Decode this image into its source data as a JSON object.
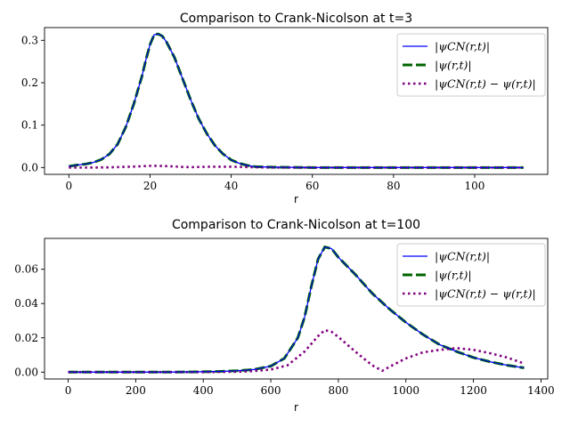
{
  "chart_data": [
    {
      "type": "line",
      "title": "Comparison to Crank-Nicolson at t=3",
      "xlabel": "r",
      "ylabel": "",
      "xlim": [
        -6,
        118
      ],
      "ylim": [
        -0.016,
        0.33
      ],
      "xticks": [
        0,
        20,
        40,
        60,
        80,
        100
      ],
      "xtick_labels": [
        "0",
        "20",
        "40",
        "60",
        "80",
        "100"
      ],
      "yticks": [
        0.0,
        0.1,
        0.2,
        0.3
      ],
      "ytick_labels": [
        "0.0",
        "0.1",
        "0.2",
        "0.3"
      ],
      "legend": "top-right",
      "series": [
        {
          "name": "|ψCN(r,t)|",
          "color": "#0000ff",
          "style": "solid",
          "x": [
            0,
            2,
            4,
            6,
            8,
            10,
            12,
            14,
            16,
            18,
            19,
            20,
            21,
            22,
            23,
            24,
            26,
            28,
            30,
            32,
            34,
            36,
            38,
            40,
            42,
            44,
            46,
            50,
            60,
            70,
            80,
            90,
            100,
            112
          ],
          "y": [
            0.003,
            0.006,
            0.008,
            0.012,
            0.019,
            0.032,
            0.055,
            0.095,
            0.15,
            0.215,
            0.255,
            0.29,
            0.313,
            0.315,
            0.31,
            0.297,
            0.26,
            0.21,
            0.16,
            0.115,
            0.08,
            0.052,
            0.032,
            0.018,
            0.01,
            0.005,
            0.002,
            0.001,
            0.0,
            0.0,
            0.0,
            0.0,
            0.0,
            0.0
          ]
        },
        {
          "name": "|ψ(r,t)|",
          "color": "#006400",
          "style": "dashed",
          "x": [
            0,
            2,
            4,
            6,
            8,
            10,
            12,
            14,
            16,
            18,
            19,
            20,
            21,
            22,
            23,
            24,
            26,
            28,
            30,
            32,
            34,
            36,
            38,
            40,
            42,
            44,
            46,
            50,
            60,
            70,
            80,
            90,
            100,
            112
          ],
          "y": [
            0.003,
            0.006,
            0.008,
            0.012,
            0.019,
            0.032,
            0.055,
            0.095,
            0.15,
            0.215,
            0.255,
            0.29,
            0.313,
            0.315,
            0.31,
            0.297,
            0.26,
            0.21,
            0.16,
            0.115,
            0.08,
            0.052,
            0.032,
            0.018,
            0.01,
            0.005,
            0.002,
            0.001,
            0.0,
            0.0,
            0.0,
            0.0,
            0.0,
            0.0
          ]
        },
        {
          "name": "|ψCN(r,t) − ψ(r,t)|",
          "color": "#800080",
          "style": "dotted",
          "x": [
            0,
            5,
            10,
            15,
            20,
            22,
            25,
            28,
            30,
            35,
            40,
            45,
            50,
            60,
            80,
            100,
            112
          ],
          "y": [
            0.0,
            0.0,
            0.0005,
            0.002,
            0.004,
            0.004,
            0.003,
            0.0015,
            0.001,
            0.002,
            0.002,
            0.001,
            0.0,
            0.0,
            0.0,
            0.0,
            0.0
          ]
        }
      ]
    },
    {
      "type": "line",
      "title": "Comparison to Crank-Nicolson at t=100",
      "xlabel": "r",
      "ylabel": "",
      "xlim": [
        -70,
        1420
      ],
      "ylim": [
        -0.004,
        0.078
      ],
      "xticks": [
        0,
        200,
        400,
        600,
        800,
        1000,
        1200,
        1400
      ],
      "xtick_labels": [
        "0",
        "200",
        "400",
        "600",
        "800",
        "1000",
        "1200",
        "1400"
      ],
      "yticks": [
        0.0,
        0.02,
        0.04,
        0.06
      ],
      "ytick_labels": [
        "0.00",
        "0.02",
        "0.04",
        "0.06"
      ],
      "legend": "top-right",
      "series": [
        {
          "name": "|ψCN(r,t)|",
          "color": "#0000ff",
          "style": "solid",
          "x": [
            0,
            100,
            200,
            300,
            400,
            450,
            500,
            550,
            600,
            640,
            680,
            700,
            720,
            740,
            760,
            780,
            800,
            850,
            900,
            950,
            1000,
            1050,
            1100,
            1150,
            1200,
            1250,
            1300,
            1350
          ],
          "y": [
            0.0,
            0.0,
            0.0,
            0.0,
            0.0002,
            0.0004,
            0.0008,
            0.0015,
            0.0035,
            0.008,
            0.02,
            0.032,
            0.05,
            0.066,
            0.073,
            0.072,
            0.067,
            0.057,
            0.046,
            0.037,
            0.029,
            0.022,
            0.016,
            0.012,
            0.0085,
            0.006,
            0.004,
            0.0025
          ]
        },
        {
          "name": "|ψ(r,t)|",
          "color": "#006400",
          "style": "dashed",
          "x": [
            0,
            100,
            200,
            300,
            400,
            450,
            500,
            550,
            600,
            640,
            680,
            700,
            720,
            740,
            760,
            780,
            800,
            850,
            900,
            950,
            1000,
            1050,
            1100,
            1150,
            1200,
            1250,
            1300,
            1350
          ],
          "y": [
            0.0,
            0.0,
            0.0,
            0.0,
            0.0002,
            0.0004,
            0.0008,
            0.0015,
            0.0035,
            0.008,
            0.02,
            0.032,
            0.05,
            0.066,
            0.073,
            0.072,
            0.067,
            0.057,
            0.046,
            0.037,
            0.029,
            0.022,
            0.016,
            0.012,
            0.0085,
            0.006,
            0.004,
            0.0025
          ]
        },
        {
          "name": "|ψCN(r,t) − ψ(r,t)|",
          "color": "#800080",
          "style": "dotted",
          "x": [
            0,
            200,
            400,
            500,
            550,
            600,
            650,
            700,
            740,
            760,
            780,
            800,
            850,
            900,
            930,
            960,
            1000,
            1050,
            1100,
            1150,
            1200,
            1250,
            1300,
            1350
          ],
          "y": [
            0.0,
            0.0,
            0.0,
            0.0002,
            0.0006,
            0.0015,
            0.004,
            0.012,
            0.021,
            0.0245,
            0.0235,
            0.0205,
            0.012,
            0.004,
            0.0008,
            0.004,
            0.008,
            0.0115,
            0.013,
            0.014,
            0.013,
            0.011,
            0.0085,
            0.005
          ]
        }
      ]
    }
  ]
}
